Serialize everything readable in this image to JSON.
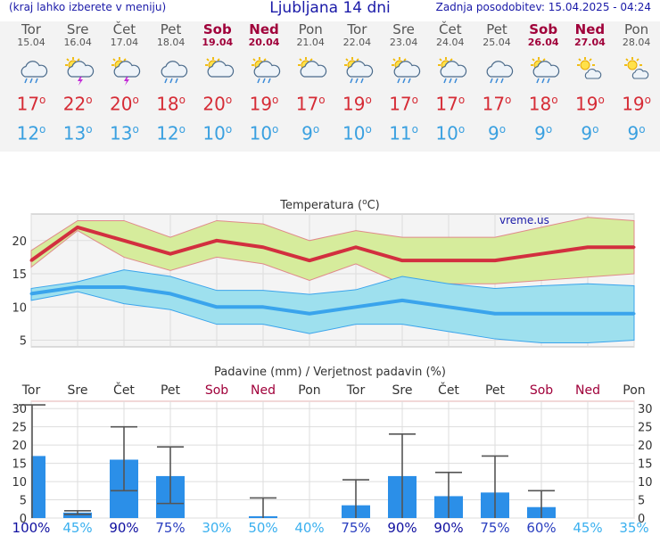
{
  "header": {
    "menu_hint": "(kraj lahko izberete v meniju)",
    "title": "Ljubljana 14 dni",
    "last_update": "Zadnja posodobitev: 15.04.2025 - 04:24"
  },
  "days": [
    {
      "name": "Tor",
      "date": "15.04",
      "weekend": false,
      "icon": "rain-cloud-icon",
      "tmax": "17",
      "tmin": "12"
    },
    {
      "name": "Sre",
      "date": "16.04",
      "weekend": false,
      "icon": "thunderstorm-sun-icon",
      "tmax": "22",
      "tmin": "13"
    },
    {
      "name": "Čet",
      "date": "17.04",
      "weekend": false,
      "icon": "thunderstorm-sun-icon",
      "tmax": "20",
      "tmin": "13"
    },
    {
      "name": "Pet",
      "date": "18.04",
      "weekend": false,
      "icon": "rain-cloud-icon",
      "tmax": "18",
      "tmin": "12"
    },
    {
      "name": "Sob",
      "date": "19.04",
      "weekend": true,
      "icon": "partly-cloudy-icon",
      "tmax": "20",
      "tmin": "10"
    },
    {
      "name": "Ned",
      "date": "20.04",
      "weekend": true,
      "icon": "sun-cloud-rain-icon",
      "tmax": "19",
      "tmin": "10"
    },
    {
      "name": "Pon",
      "date": "21.04",
      "weekend": false,
      "icon": "partly-cloudy-icon",
      "tmax": "17",
      "tmin": "9"
    },
    {
      "name": "Tor",
      "date": "22.04",
      "weekend": false,
      "icon": "sun-cloud-rain-icon",
      "tmax": "19",
      "tmin": "10"
    },
    {
      "name": "Sre",
      "date": "23.04",
      "weekend": false,
      "icon": "sun-cloud-rain-icon",
      "tmax": "17",
      "tmin": "11"
    },
    {
      "name": "Čet",
      "date": "24.04",
      "weekend": false,
      "icon": "sun-cloud-rain-icon",
      "tmax": "17",
      "tmin": "10"
    },
    {
      "name": "Pet",
      "date": "25.04",
      "weekend": false,
      "icon": "rain-cloud-icon",
      "tmax": "17",
      "tmin": "9"
    },
    {
      "name": "Sob",
      "date": "26.04",
      "weekend": true,
      "icon": "sun-cloud-rain-icon",
      "tmax": "18",
      "tmin": "9"
    },
    {
      "name": "Ned",
      "date": "27.04",
      "weekend": true,
      "icon": "sun-light-cloud-icon",
      "tmax": "19",
      "tmin": "9"
    },
    {
      "name": "Pon",
      "date": "28.04",
      "weekend": false,
      "icon": "sun-light-cloud-icon",
      "tmax": "19",
      "tmin": "9"
    }
  ],
  "chart_data": [
    {
      "type": "line",
      "title": "Temperatura (oC)",
      "annotation": "vreme.us",
      "x": [
        "Tor 15.04",
        "Sre 16.04",
        "Čet 17.04",
        "Pet 18.04",
        "Sob 19.04",
        "Ned 20.04",
        "Pon 21.04",
        "Tor 22.04",
        "Sre 23.04",
        "Čet 24.04",
        "Pet 25.04",
        "Sob 26.04",
        "Ned 27.04",
        "Pon 28.04"
      ],
      "ylim": [
        4,
        24
      ],
      "yticks": [
        5,
        10,
        15,
        20
      ],
      "grid": true,
      "colors": {
        "max": "#d22f3f",
        "min": "#3aa4ec",
        "max_band": "#d6ec9c",
        "min_band": "#9ee0ee"
      },
      "series": [
        {
          "values": [
            17,
            22,
            20,
            18,
            20,
            19,
            17,
            19,
            17,
            17,
            17,
            18,
            19,
            19
          ]
        },
        {
          "values": [
            12,
            13,
            13,
            12,
            10,
            10,
            9,
            10,
            11,
            10,
            9,
            9,
            9,
            9
          ]
        }
      ],
      "max_band": {
        "low": [
          16,
          21.5,
          17.5,
          15.5,
          17.5,
          16.5,
          14,
          16.5,
          13.5,
          13.5,
          13.5,
          14,
          14.5,
          15
        ],
        "high": [
          18.5,
          23,
          23,
          20.5,
          23,
          22.5,
          20,
          21.5,
          20.5,
          20.5,
          20.5,
          22,
          23.5,
          23
        ]
      },
      "min_band": {
        "low": [
          11,
          12.3,
          10.5,
          9.6,
          7.4,
          7.4,
          6,
          7.4,
          7.4,
          6.3,
          5.2,
          4.6,
          4.6,
          5
        ],
        "high": [
          12.8,
          13.8,
          15.6,
          14.6,
          12.5,
          12.5,
          11.9,
          12.6,
          14.6,
          13.5,
          12.8,
          13.2,
          13.5,
          13.2
        ]
      }
    },
    {
      "type": "bar",
      "title": "Padavine (mm) / Verjetnost padavin (%)",
      "categories": [
        "Tor",
        "Sre",
        "Čet",
        "Pet",
        "Sob",
        "Ned",
        "Pon",
        "Tor",
        "Sre",
        "Čet",
        "Pet",
        "Sob",
        "Ned",
        "Pon"
      ],
      "ylim": [
        0,
        32
      ],
      "yticks": [
        0,
        5,
        10,
        15,
        20,
        25,
        30
      ],
      "values": [
        17,
        1.5,
        16,
        11.5,
        0,
        0.5,
        0,
        3.5,
        11.5,
        6,
        7,
        3,
        0,
        0
      ],
      "error_low": [
        0,
        1,
        7.5,
        4,
        0,
        0,
        0,
        0,
        0,
        0,
        0,
        0,
        0,
        0
      ],
      "error_high": [
        31,
        2,
        25,
        19.5,
        0,
        5.5,
        0,
        10.5,
        23,
        12.5,
        17,
        7.5,
        0,
        0
      ],
      "probability": [
        "100%",
        "45%",
        "90%",
        "75%",
        "30%",
        "50%",
        "40%",
        "75%",
        "90%",
        "90%",
        "75%",
        "60%",
        "45%",
        "35%"
      ],
      "bar_color": "#2b8fe8"
    }
  ]
}
